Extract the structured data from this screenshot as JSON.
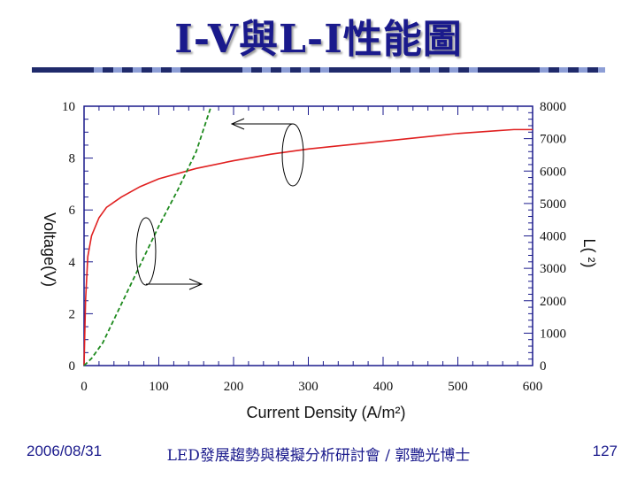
{
  "slide": {
    "title": "I-V與L-I性能圖",
    "footer_date": "2006/08/31",
    "footer_center": "LED發展趨勢與模擬分析研討會 / 郭艷光博士",
    "page_number": "127"
  },
  "colors": {
    "title": "#1a1a8c",
    "iv_curve": "#e02020",
    "li_curve": "#1e8a1e",
    "axis": "#1a1a8c",
    "bar_dark": "#1f2a6b",
    "bar_light": "#8d9ed6"
  },
  "chart_data": {
    "type": "line",
    "xlabel": "Current Density (A/m²)",
    "ylabel_left": "Voltage(V)",
    "ylabel_right": "L( ²)",
    "xlim": [
      0,
      600
    ],
    "ylim_left": [
      0,
      10
    ],
    "ylim_right": [
      0,
      8000
    ],
    "x_ticks": [
      "0",
      "100",
      "200",
      "300",
      "400",
      "500",
      "600"
    ],
    "y_left_ticks": [
      "0",
      "2",
      "4",
      "6",
      "8",
      "10"
    ],
    "y_right_ticks": [
      "0",
      "1000",
      "2000",
      "3000",
      "4000",
      "5000",
      "6000",
      "7000",
      "8000"
    ],
    "series": [
      {
        "axis": "left",
        "x": [
          0,
          2,
          5,
          10,
          20,
          30,
          50,
          75,
          100,
          150,
          200,
          250,
          300,
          350,
          400,
          450,
          500,
          550,
          575,
          600
        ],
        "y": [
          0,
          2.5,
          4.2,
          5.0,
          5.7,
          6.1,
          6.5,
          6.9,
          7.2,
          7.6,
          7.9,
          8.15,
          8.35,
          8.5,
          8.65,
          8.8,
          8.95,
          9.05,
          9.1,
          9.1
        ]
      },
      {
        "axis": "right",
        "x": [
          0,
          10,
          25,
          50,
          75,
          100,
          125,
          150,
          170
        ],
        "y": [
          0,
          220,
          700,
          1900,
          3100,
          4300,
          5400,
          6600,
          8000
        ]
      }
    ]
  }
}
